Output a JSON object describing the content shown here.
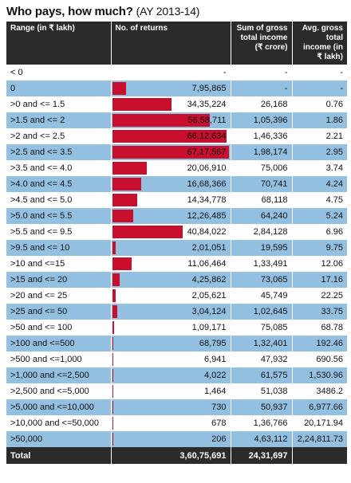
{
  "title": "Who pays, how much?",
  "subtitle": "(AY 2013-14)",
  "colors": {
    "bar": "#c8102e",
    "header": "#2b2b2b",
    "band": "#93bfe0"
  },
  "chart_data": {
    "type": "table",
    "headers": [
      "Range (in ₹ lakh)",
      "No. of returns",
      "Sum of gross total income (₹ crore)",
      "Avg. gross total income (in ₹ lakh)"
    ],
    "rows": [
      {
        "range": "< 0",
        "returns": "-",
        "returns_value": 0,
        "sum": "-",
        "avg": "-"
      },
      {
        "range": "0",
        "returns": "7,95,865",
        "returns_value": 795865,
        "sum": "-",
        "avg": "-"
      },
      {
        "range": ">0 and <= 1.5",
        "returns": "34,35,224",
        "returns_value": 3435224,
        "sum": "26,168",
        "avg": "0.76"
      },
      {
        "range": ">1.5 and <= 2",
        "returns": "56,58,711",
        "returns_value": 5658711,
        "sum": "1,05,396",
        "avg": "1.86"
      },
      {
        "range": ">2 and <= 2.5",
        "returns": "66,12,634",
        "returns_value": 6612634,
        "sum": "1,46,336",
        "avg": "2.21"
      },
      {
        "range": ">2.5 and <= 3.5",
        "returns": "67,17,567",
        "returns_value": 6717567,
        "sum": "1,98,174",
        "avg": "2.95"
      },
      {
        "range": ">3.5 and <= 4.0",
        "returns": "20,06,910",
        "returns_value": 2006910,
        "sum": "75,006",
        "avg": "3.74"
      },
      {
        "range": ">4.0 and <= 4.5",
        "returns": "16,68,366",
        "returns_value": 1668366,
        "sum": "70,741",
        "avg": "4.24"
      },
      {
        "range": ">4.5 and <= 5.0",
        "returns": "14,34,778",
        "returns_value": 1434778,
        "sum": "68,118",
        "avg": "4.75"
      },
      {
        "range": ">5.0 and <= 5.5",
        "returns": "12,26,485",
        "returns_value": 1226485,
        "sum": "64,240",
        "avg": "5.24"
      },
      {
        "range": ">5.5 and <= 9.5",
        "returns": "40,84,022",
        "returns_value": 4084022,
        "sum": "2,84,128",
        "avg": "6.96"
      },
      {
        "range": ">9.5 and <= 10",
        "returns": "2,01,051",
        "returns_value": 201051,
        "sum": "19,595",
        "avg": "9.75"
      },
      {
        "range": ">10 and <=15",
        "returns": "11,06,464",
        "returns_value": 1106464,
        "sum": "1,33,491",
        "avg": "12.06"
      },
      {
        "range": ">15 and <= 20",
        "returns": "4,25,862",
        "returns_value": 425862,
        "sum": "73,065",
        "avg": "17.16"
      },
      {
        "range": ">20 and <= 25",
        "returns": "2,05,621",
        "returns_value": 205621,
        "sum": "45,749",
        "avg": "22.25"
      },
      {
        "range": ">25 and <= 50",
        "returns": "3,04,124",
        "returns_value": 304124,
        "sum": "1,02,645",
        "avg": "33.75"
      },
      {
        "range": ">50 and <= 100",
        "returns": "1,09,171",
        "returns_value": 109171,
        "sum": "75,085",
        "avg": "68.78"
      },
      {
        "range": ">100 and <=500",
        "returns": "68,795",
        "returns_value": 68795,
        "sum": "1,32,401",
        "avg": "192.46"
      },
      {
        "range": ">500 and <=1,000",
        "returns": "6,941",
        "returns_value": 6941,
        "sum": "47,932",
        "avg": "690.56"
      },
      {
        "range": ">1,000 and <=2,500",
        "returns": "4,022",
        "returns_value": 4022,
        "sum": "61,575",
        "avg": "1,530.96"
      },
      {
        "range": ">2,500 and <=5,000",
        "returns": "1,464",
        "returns_value": 1464,
        "sum": "51,038",
        "avg": "3486.2"
      },
      {
        "range": ">5,000 and <=10,000",
        "returns": "730",
        "returns_value": 730,
        "sum": "50,937",
        "avg": "6,977.66"
      },
      {
        "range": ">10,000 and <=50,000",
        "returns": "678",
        "returns_value": 678,
        "sum": "1,36,766",
        "avg": "20,171.94"
      },
      {
        "range": ">50,000",
        "returns": "206",
        "returns_value": 206,
        "sum": "4,63,112",
        "avg": "2,24,811.73"
      }
    ],
    "total": {
      "label": "Total",
      "returns": "3,60,75,691",
      "sum": "24,31,697",
      "avg": ""
    },
    "bar_scale_max": 6717567
  }
}
